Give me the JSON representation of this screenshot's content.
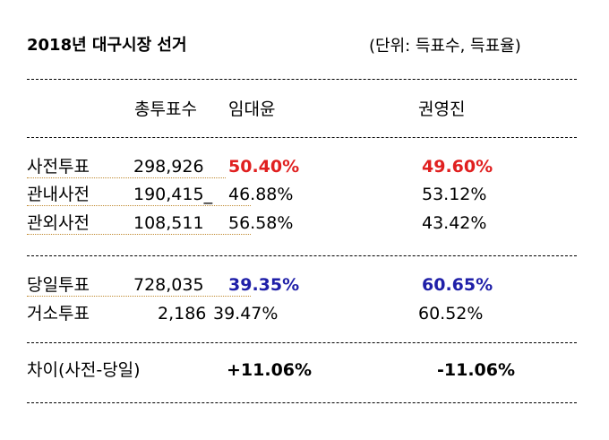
{
  "title": "2018년  대구시장  선거",
  "unit_note": "(단위:  득표수,  득표율)",
  "headers": {
    "total_votes": "총투표수",
    "candidate1": "임대윤",
    "candidate2": "권영진"
  },
  "rows": [
    {
      "label": "사전투표",
      "total": "298,926",
      "c1": "50.40%",
      "c2": "49.60%"
    },
    {
      "label": "관내사전",
      "total": "190,415_",
      "c1": "46.88%",
      "c2": "53.12%"
    },
    {
      "label": "관외사전",
      "total": "108,511",
      "c1": "56.58%",
      "c2": "43.42%"
    },
    {
      "label": "당일투표",
      "total": "728,035",
      "c1": "39.35%",
      "c2": "60.65%"
    },
    {
      "label": "거소투표",
      "total": "2,186",
      "c1": "39.47%",
      "c2": "60.52%"
    }
  ],
  "difference": {
    "label": "차이(사전-당일)",
    "c1": "+11.06%",
    "c2": "-11.06%"
  },
  "colors": {
    "highlight_red": "#e02020",
    "highlight_blue": "#1f1fa8"
  }
}
